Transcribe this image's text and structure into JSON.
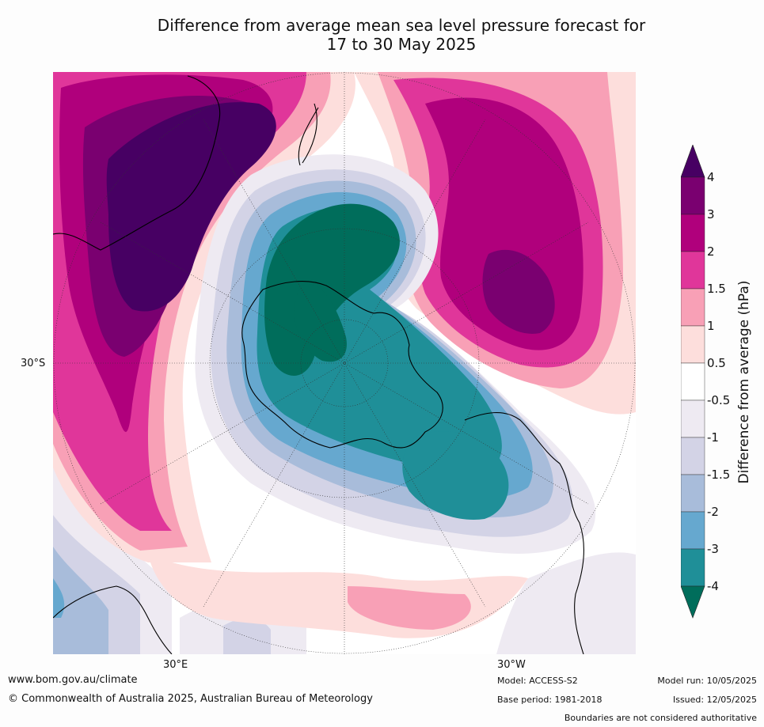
{
  "title": {
    "line1": "Difference from average mean sea level pressure forecast for",
    "line2": "17 to 30 May 2025"
  },
  "map": {
    "projection": "south polar stereographic",
    "lat_labels": [
      "30°S"
    ],
    "lon_labels": [
      "30°E",
      "30°W"
    ],
    "colors": {
      "deep_purple": "#470063",
      "purple": "#7a0070",
      "magenta": "#b0007c",
      "pink": "#e0369a",
      "light_pink": "#f8a0b6",
      "pale_pink": "#fddedc",
      "white": "#ffffff",
      "very_pale_blue": "#eeeaf2",
      "pale_blue": "#d3d3e6",
      "light_blue": "#a8bcda",
      "blue": "#66a8cf",
      "teal": "#1f8f98",
      "dark_teal": "#006d5b"
    },
    "features": [
      {
        "name": "strong positive anomaly over Australia",
        "sign": "positive",
        "max_level": "> 4 hPa"
      },
      {
        "name": "strong positive anomaly over South Pacific",
        "sign": "positive",
        "max_level": "3 to 4 hPa"
      },
      {
        "name": "negative anomaly over Antarctica",
        "sign": "negative",
        "min_level": "< -4 hPa"
      },
      {
        "name": "negative anomaly south of South America",
        "sign": "negative",
        "min_level": "-3 to -4 hPa"
      },
      {
        "name": "weak positive anomaly South Atlantic",
        "sign": "positive",
        "max_level": "1 to 1.5 hPa"
      }
    ]
  },
  "colorbar": {
    "label": "Difference from average (hPa)",
    "ticks": [
      "4",
      "3",
      "2",
      "1.5",
      "1",
      "0.5",
      "-0.5",
      "-1",
      "-1.5",
      "-2",
      "-3",
      "-4"
    ],
    "bins": [
      {
        "range": "> 4",
        "color": "#470063"
      },
      {
        "range": "3 to 4",
        "color": "#7a0070"
      },
      {
        "range": "2 to 3",
        "color": "#b0007c"
      },
      {
        "range": "1.5 to 2",
        "color": "#e0369a"
      },
      {
        "range": "1 to 1.5",
        "color": "#f8a0b6"
      },
      {
        "range": "0.5 to 1",
        "color": "#fddedc"
      },
      {
        "range": "-0.5 to 0.5",
        "color": "#ffffff"
      },
      {
        "range": "-1 to -0.5",
        "color": "#eeeaf2"
      },
      {
        "range": "-1.5 to -1",
        "color": "#d3d3e6"
      },
      {
        "range": "-2 to -1.5",
        "color": "#a8bcda"
      },
      {
        "range": "-3 to -2",
        "color": "#66a8cf"
      },
      {
        "range": "-4 to -3",
        "color": "#1f8f98"
      },
      {
        "range": "< -4",
        "color": "#006d5b"
      }
    ]
  },
  "footer": {
    "url": "www.bom.gov.au/climate",
    "copyright": "© Commonwealth of Australia 2025, Australian Bureau of Meteorology",
    "model": "Model: ACCESS-S2",
    "base_period": "Base period: 1981-2018",
    "model_run": "Model run: 10/05/2025",
    "issued": "Issued: 12/05/2025",
    "disclaimer": "Boundaries are not considered authoritative"
  }
}
